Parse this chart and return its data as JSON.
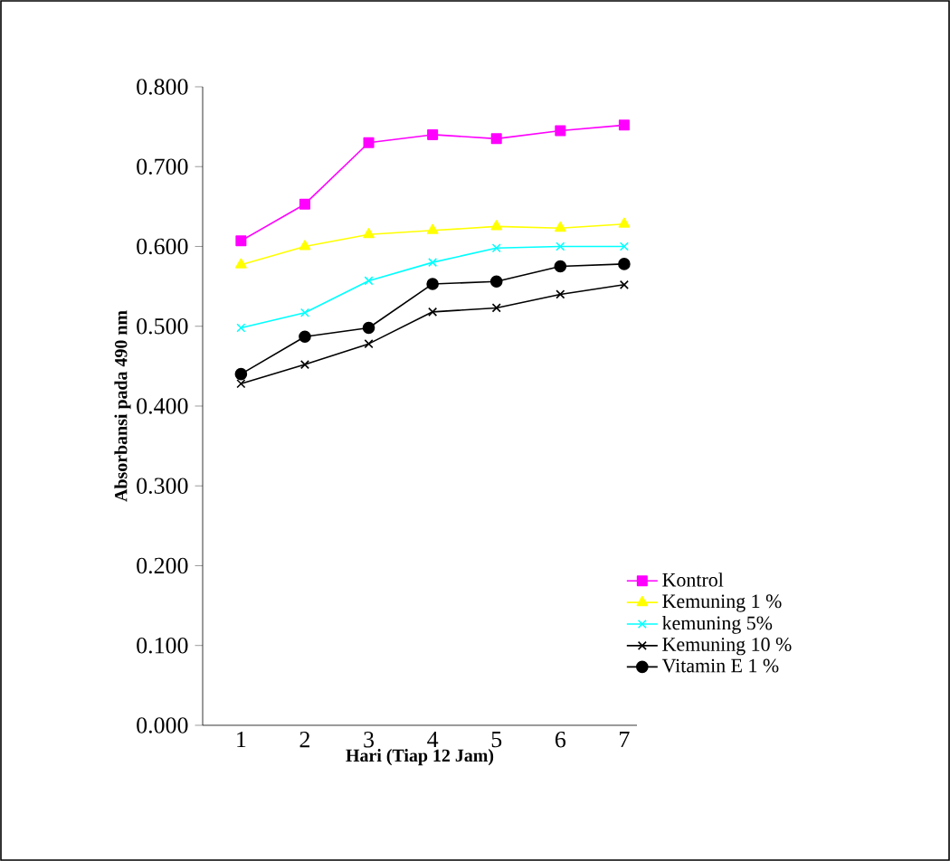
{
  "chart_data": {
    "type": "line",
    "xlabel": "Hari (Tiap 12 Jam)",
    "ylabel": "Absorbansi pada 490 nm",
    "categories": [
      "1",
      "2",
      "3",
      "4",
      "5",
      "6",
      "7"
    ],
    "ylim": [
      0,
      0.8
    ],
    "yticks": [
      {
        "value": 0,
        "label": "0.000"
      },
      {
        "value": 0.1,
        "label": "0.100"
      },
      {
        "value": 0.2,
        "label": "0.200"
      },
      {
        "value": 0.3,
        "label": "0.300"
      },
      {
        "value": 0.4,
        "label": "0.400"
      },
      {
        "value": 0.5,
        "label": "0.500"
      },
      {
        "value": 0.6,
        "label": "0.600"
      },
      {
        "value": 0.7,
        "label": "0.700"
      },
      {
        "value": 0.8,
        "label": "0.800"
      }
    ],
    "legend": "bottom right",
    "series": [
      {
        "name": "Kontrol",
        "color": "#ff00ff",
        "marker": "square",
        "values": [
          0.607,
          0.653,
          0.73,
          0.74,
          0.735,
          0.745,
          0.752
        ]
      },
      {
        "name": "Kemuning 1 %",
        "color": "#ffff00",
        "marker": "triangle",
        "values": [
          0.577,
          0.6,
          0.615,
          0.62,
          0.625,
          0.623,
          0.628
        ]
      },
      {
        "name": "kemuning 5%",
        "color": "#00ffff",
        "marker": "cross",
        "values": [
          0.498,
          0.517,
          0.557,
          0.58,
          0.598,
          0.6,
          0.6
        ]
      },
      {
        "name": "Kemuning 10 %",
        "color": "#000000",
        "marker": "cross",
        "values": [
          0.428,
          0.452,
          0.478,
          0.518,
          0.523,
          0.54,
          0.552
        ]
      },
      {
        "name": "Vitamin E 1 %",
        "color": "#000000",
        "marker": "circle",
        "values": [
          0.44,
          0.487,
          0.498,
          0.553,
          0.556,
          0.575,
          0.578
        ]
      }
    ]
  }
}
